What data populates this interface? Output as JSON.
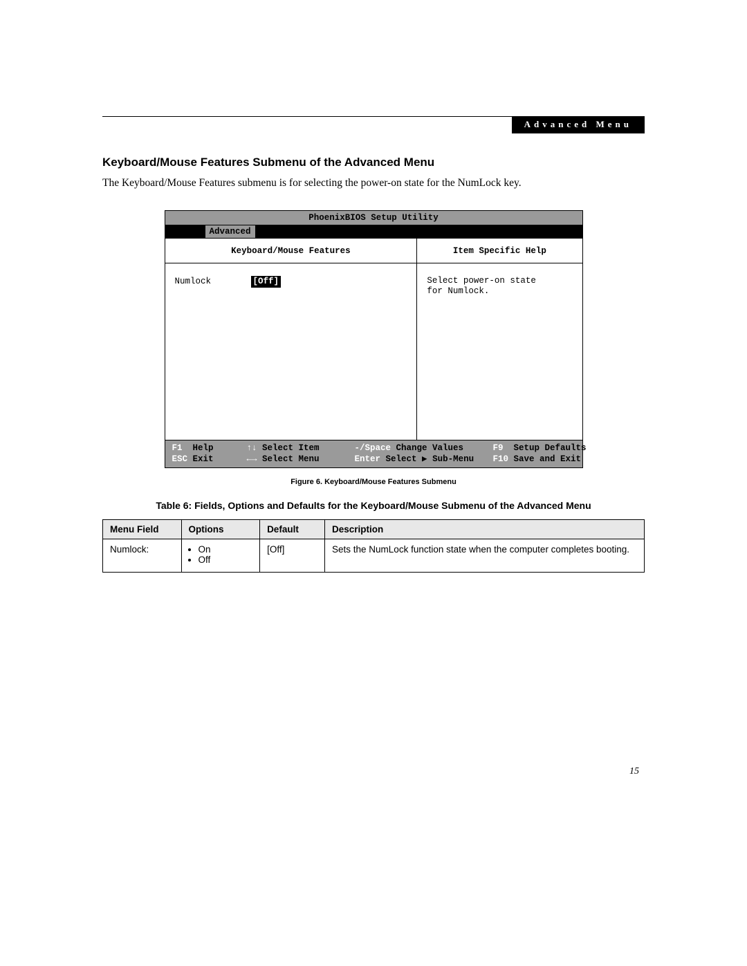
{
  "header": {
    "label": "Advanced Menu",
    "bg": "#000000",
    "fg": "#ffffff"
  },
  "section_title": "Keyboard/Mouse Features Submenu of the Advanced Menu",
  "intro_text": "The Keyboard/Mouse Features submenu is for selecting the power-on state for the NumLock key.",
  "bios": {
    "title": "PhoenixBIOS Setup Utility",
    "active_tab": "Advanced",
    "left_panel_title": "Keyboard/Mouse Features",
    "right_panel_title": "Item Specific Help",
    "field": {
      "label": "Numlock",
      "value": "[Off]"
    },
    "help_text_line1": "Select power-on state",
    "help_text_line2": "for Numlock.",
    "colors": {
      "titlebar_bg": "#9a9a9a",
      "menubar_bg": "#000000",
      "body_bg": "#ffffff",
      "footer_bg": "#9a9a9a",
      "highlight_fg": "#ffffff",
      "border": "#000000"
    },
    "footer": {
      "row1": {
        "c1_key": "F1",
        "c1_label": "Help",
        "c2_key": "↑↓",
        "c2_label": "Select Item",
        "c3_key": "-/Space",
        "c3_label": "Change Values",
        "c4_key": "F9",
        "c4_label": "Setup Defaults"
      },
      "row2": {
        "c1_key": "ESC",
        "c1_label": "Exit",
        "c2_key": "←→",
        "c2_label": "Select Menu",
        "c3_key": "Enter",
        "c3_label": "Select ▶ Sub-Menu",
        "c4_key": "F10",
        "c4_label": "Save and Exit"
      }
    }
  },
  "figure_caption": "Figure 6.  Keyboard/Mouse Features Submenu",
  "table_title": "Table 6: Fields, Options and Defaults for the Keyboard/Mouse Submenu of the Advanced Menu",
  "table": {
    "headers": {
      "menu": "Menu Field",
      "options": "Options",
      "def": "Default",
      "desc": "Description"
    },
    "header_bg": "#e8e8e8",
    "row": {
      "menu": "Numlock:",
      "options": [
        "On",
        "Off"
      ],
      "def": "[Off]",
      "desc": "Sets the NumLock function state when the computer completes booting."
    }
  },
  "page_number": "15"
}
